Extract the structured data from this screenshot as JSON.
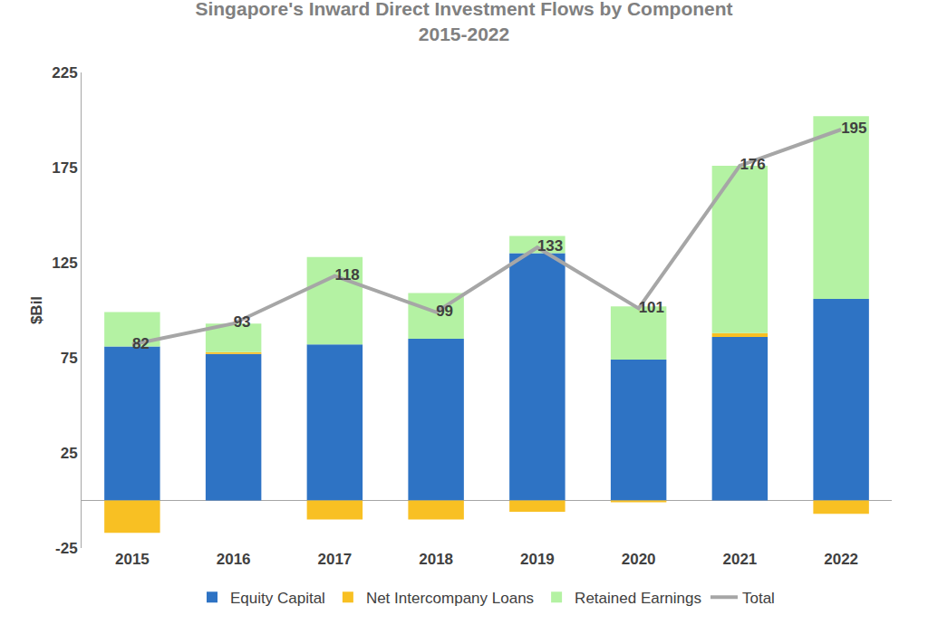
{
  "chart_data": {
    "type": "bar",
    "title": "Singapore's Inward Direct Investment Flows by Component",
    "subtitle": "2015-2022",
    "y_label": "$Bil",
    "categories": [
      "2015",
      "2016",
      "2017",
      "2018",
      "2019",
      "2020",
      "2021",
      "2022"
    ],
    "stacked": true,
    "grid": false,
    "legend": "bottom",
    "ylim": [
      -25,
      225
    ],
    "yticks": [
      -25,
      25,
      75,
      125,
      175,
      225
    ],
    "series": [
      {
        "name": "Equity Capital",
        "type": "bar",
        "color": "#2e73c4",
        "values": [
          81,
          77,
          82,
          85,
          130,
          74,
          86,
          106
        ]
      },
      {
        "name": "Net Intercompany Loans",
        "type": "bar",
        "color": "#f8c023",
        "values": [
          -17,
          1,
          -10,
          -10,
          -6,
          -1,
          2,
          -7
        ]
      },
      {
        "name": "Retained Earnings",
        "type": "bar",
        "color": "#b4f2a3",
        "values": [
          18,
          15,
          46,
          24,
          9,
          28,
          88,
          96
        ]
      },
      {
        "name": "Total",
        "type": "line",
        "color": "#a6a6a6",
        "data_labels": true,
        "values": [
          82,
          93,
          118,
          99,
          133,
          101,
          176,
          195
        ]
      }
    ]
  }
}
